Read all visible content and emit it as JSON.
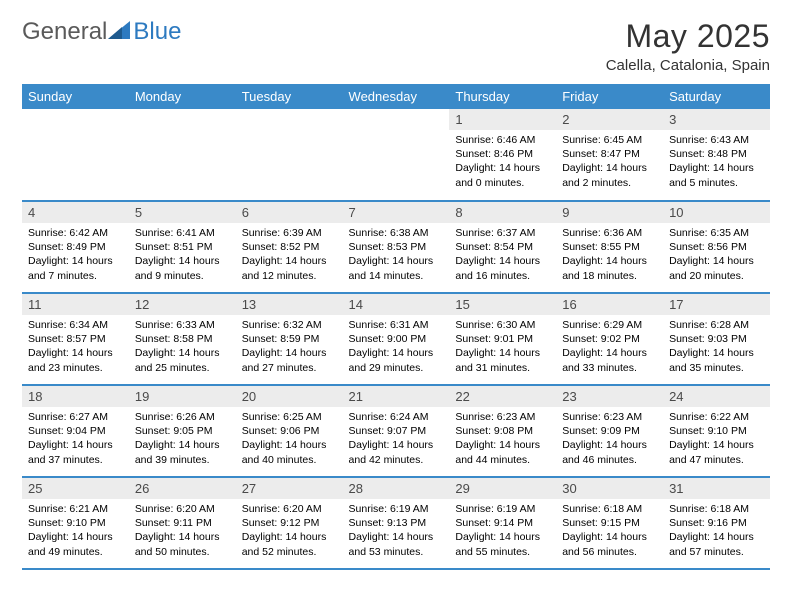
{
  "logo": {
    "word1": "General",
    "word2": "Blue"
  },
  "title": "May 2025",
  "subtitle": "Calella, Catalonia, Spain",
  "colors": {
    "header_bg": "#3a8ac9",
    "header_fg": "#ffffff",
    "daynum_bg": "#ececec",
    "border": "#3a8ac9",
    "logo_gray": "#5a5a5a",
    "logo_blue": "#2d7ac0"
  },
  "weekdays": [
    "Sunday",
    "Monday",
    "Tuesday",
    "Wednesday",
    "Thursday",
    "Friday",
    "Saturday"
  ],
  "weeks": [
    [
      null,
      null,
      null,
      null,
      {
        "n": "1",
        "sr": "Sunrise: 6:46 AM",
        "ss": "Sunset: 8:46 PM",
        "d1": "Daylight: 14 hours",
        "d2": "and 0 minutes."
      },
      {
        "n": "2",
        "sr": "Sunrise: 6:45 AM",
        "ss": "Sunset: 8:47 PM",
        "d1": "Daylight: 14 hours",
        "d2": "and 2 minutes."
      },
      {
        "n": "3",
        "sr": "Sunrise: 6:43 AM",
        "ss": "Sunset: 8:48 PM",
        "d1": "Daylight: 14 hours",
        "d2": "and 5 minutes."
      }
    ],
    [
      {
        "n": "4",
        "sr": "Sunrise: 6:42 AM",
        "ss": "Sunset: 8:49 PM",
        "d1": "Daylight: 14 hours",
        "d2": "and 7 minutes."
      },
      {
        "n": "5",
        "sr": "Sunrise: 6:41 AM",
        "ss": "Sunset: 8:51 PM",
        "d1": "Daylight: 14 hours",
        "d2": "and 9 minutes."
      },
      {
        "n": "6",
        "sr": "Sunrise: 6:39 AM",
        "ss": "Sunset: 8:52 PM",
        "d1": "Daylight: 14 hours",
        "d2": "and 12 minutes."
      },
      {
        "n": "7",
        "sr": "Sunrise: 6:38 AM",
        "ss": "Sunset: 8:53 PM",
        "d1": "Daylight: 14 hours",
        "d2": "and 14 minutes."
      },
      {
        "n": "8",
        "sr": "Sunrise: 6:37 AM",
        "ss": "Sunset: 8:54 PM",
        "d1": "Daylight: 14 hours",
        "d2": "and 16 minutes."
      },
      {
        "n": "9",
        "sr": "Sunrise: 6:36 AM",
        "ss": "Sunset: 8:55 PM",
        "d1": "Daylight: 14 hours",
        "d2": "and 18 minutes."
      },
      {
        "n": "10",
        "sr": "Sunrise: 6:35 AM",
        "ss": "Sunset: 8:56 PM",
        "d1": "Daylight: 14 hours",
        "d2": "and 20 minutes."
      }
    ],
    [
      {
        "n": "11",
        "sr": "Sunrise: 6:34 AM",
        "ss": "Sunset: 8:57 PM",
        "d1": "Daylight: 14 hours",
        "d2": "and 23 minutes."
      },
      {
        "n": "12",
        "sr": "Sunrise: 6:33 AM",
        "ss": "Sunset: 8:58 PM",
        "d1": "Daylight: 14 hours",
        "d2": "and 25 minutes."
      },
      {
        "n": "13",
        "sr": "Sunrise: 6:32 AM",
        "ss": "Sunset: 8:59 PM",
        "d1": "Daylight: 14 hours",
        "d2": "and 27 minutes."
      },
      {
        "n": "14",
        "sr": "Sunrise: 6:31 AM",
        "ss": "Sunset: 9:00 PM",
        "d1": "Daylight: 14 hours",
        "d2": "and 29 minutes."
      },
      {
        "n": "15",
        "sr": "Sunrise: 6:30 AM",
        "ss": "Sunset: 9:01 PM",
        "d1": "Daylight: 14 hours",
        "d2": "and 31 minutes."
      },
      {
        "n": "16",
        "sr": "Sunrise: 6:29 AM",
        "ss": "Sunset: 9:02 PM",
        "d1": "Daylight: 14 hours",
        "d2": "and 33 minutes."
      },
      {
        "n": "17",
        "sr": "Sunrise: 6:28 AM",
        "ss": "Sunset: 9:03 PM",
        "d1": "Daylight: 14 hours",
        "d2": "and 35 minutes."
      }
    ],
    [
      {
        "n": "18",
        "sr": "Sunrise: 6:27 AM",
        "ss": "Sunset: 9:04 PM",
        "d1": "Daylight: 14 hours",
        "d2": "and 37 minutes."
      },
      {
        "n": "19",
        "sr": "Sunrise: 6:26 AM",
        "ss": "Sunset: 9:05 PM",
        "d1": "Daylight: 14 hours",
        "d2": "and 39 minutes."
      },
      {
        "n": "20",
        "sr": "Sunrise: 6:25 AM",
        "ss": "Sunset: 9:06 PM",
        "d1": "Daylight: 14 hours",
        "d2": "and 40 minutes."
      },
      {
        "n": "21",
        "sr": "Sunrise: 6:24 AM",
        "ss": "Sunset: 9:07 PM",
        "d1": "Daylight: 14 hours",
        "d2": "and 42 minutes."
      },
      {
        "n": "22",
        "sr": "Sunrise: 6:23 AM",
        "ss": "Sunset: 9:08 PM",
        "d1": "Daylight: 14 hours",
        "d2": "and 44 minutes."
      },
      {
        "n": "23",
        "sr": "Sunrise: 6:23 AM",
        "ss": "Sunset: 9:09 PM",
        "d1": "Daylight: 14 hours",
        "d2": "and 46 minutes."
      },
      {
        "n": "24",
        "sr": "Sunrise: 6:22 AM",
        "ss": "Sunset: 9:10 PM",
        "d1": "Daylight: 14 hours",
        "d2": "and 47 minutes."
      }
    ],
    [
      {
        "n": "25",
        "sr": "Sunrise: 6:21 AM",
        "ss": "Sunset: 9:10 PM",
        "d1": "Daylight: 14 hours",
        "d2": "and 49 minutes."
      },
      {
        "n": "26",
        "sr": "Sunrise: 6:20 AM",
        "ss": "Sunset: 9:11 PM",
        "d1": "Daylight: 14 hours",
        "d2": "and 50 minutes."
      },
      {
        "n": "27",
        "sr": "Sunrise: 6:20 AM",
        "ss": "Sunset: 9:12 PM",
        "d1": "Daylight: 14 hours",
        "d2": "and 52 minutes."
      },
      {
        "n": "28",
        "sr": "Sunrise: 6:19 AM",
        "ss": "Sunset: 9:13 PM",
        "d1": "Daylight: 14 hours",
        "d2": "and 53 minutes."
      },
      {
        "n": "29",
        "sr": "Sunrise: 6:19 AM",
        "ss": "Sunset: 9:14 PM",
        "d1": "Daylight: 14 hours",
        "d2": "and 55 minutes."
      },
      {
        "n": "30",
        "sr": "Sunrise: 6:18 AM",
        "ss": "Sunset: 9:15 PM",
        "d1": "Daylight: 14 hours",
        "d2": "and 56 minutes."
      },
      {
        "n": "31",
        "sr": "Sunrise: 6:18 AM",
        "ss": "Sunset: 9:16 PM",
        "d1": "Daylight: 14 hours",
        "d2": "and 57 minutes."
      }
    ]
  ]
}
